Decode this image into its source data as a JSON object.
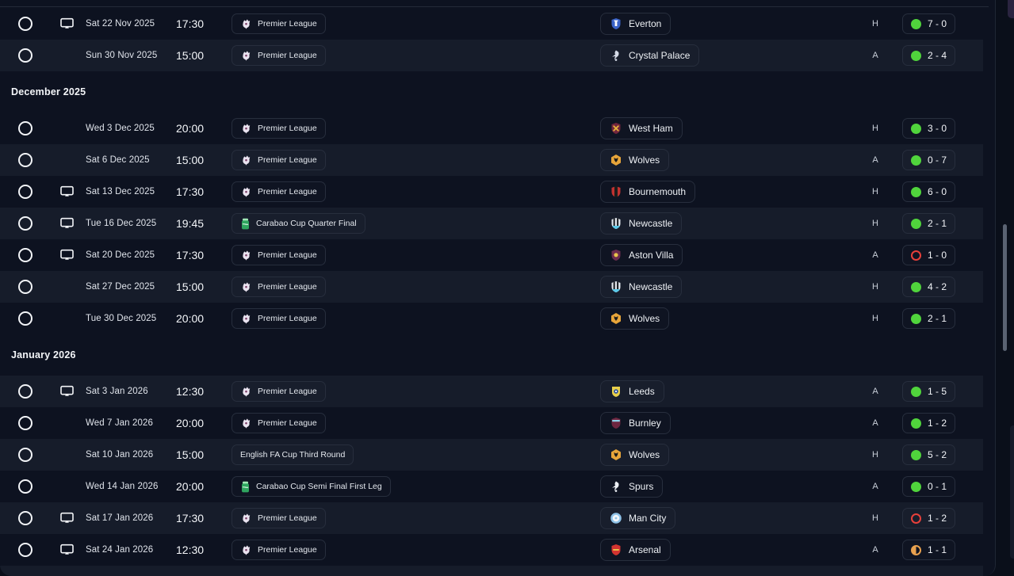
{
  "colors": {
    "win": "#50d43c",
    "loss": "#e8403a",
    "draw": "#e8a14f",
    "row_light": "#161c2a",
    "panel_bg": "#0d1220"
  },
  "fixtures": {
    "sections": [
      {
        "header": null,
        "rows": [
          {
            "tv": true,
            "date": "Sat 22 Nov 2025",
            "time": "17:30",
            "competition": {
              "label": "Premier League",
              "icon": "premier-league"
            },
            "opponent": {
              "name": "Everton",
              "badge": {
                "shape": "shield",
                "glyph": "tower",
                "primary": "#3a63c8",
                "secondary": "#ffffff"
              }
            },
            "venue": "H",
            "result": "win",
            "score": "7 - 0"
          },
          {
            "tv": false,
            "date": "Sun 30 Nov 2025",
            "time": "15:00",
            "competition": {
              "label": "Premier League",
              "icon": "premier-league"
            },
            "opponent": {
              "name": "Crystal Palace",
              "badge": {
                "shape": "bird",
                "primary": "#d4dae6",
                "secondary": "#4a69b8"
              }
            },
            "venue": "A",
            "result": "win",
            "score": "2 - 4"
          }
        ]
      },
      {
        "header": "December 2025",
        "rows": [
          {
            "tv": false,
            "date": "Wed 3 Dec 2025",
            "time": "20:00",
            "competition": {
              "label": "Premier League",
              "icon": "premier-league"
            },
            "opponent": {
              "name": "West Ham",
              "badge": {
                "shape": "shield",
                "glyph": "x",
                "primary": "#73263d",
                "secondary": "#e8b53a"
              }
            },
            "venue": "H",
            "result": "win",
            "score": "3 - 0"
          },
          {
            "tv": false,
            "date": "Sat 6 Dec 2025",
            "time": "15:00",
            "competition": {
              "label": "Premier League",
              "icon": "premier-league"
            },
            "opponent": {
              "name": "Wolves",
              "badge": {
                "shape": "hex",
                "primary": "#e8a53a",
                "secondary": "#1a1a1a"
              }
            },
            "venue": "A",
            "result": "win",
            "score": "0 - 7"
          },
          {
            "tv": true,
            "date": "Sat 13 Dec 2025",
            "time": "17:30",
            "competition": {
              "label": "Premier League",
              "icon": "premier-league"
            },
            "opponent": {
              "name": "Bournemouth",
              "badge": {
                "shape": "split",
                "primary": "#c03230",
                "secondary": "#1c1c1c"
              }
            },
            "venue": "H",
            "result": "win",
            "score": "6 - 0"
          },
          {
            "tv": true,
            "date": "Tue 16 Dec 2025",
            "time": "19:45",
            "competition": {
              "label": "Carabao Cup Quarter Final",
              "icon": "carabao"
            },
            "opponent": {
              "name": "Newcastle",
              "badge": {
                "shape": "stripes",
                "primary": "#e5e9ef",
                "secondary": "#23262b",
                "accent": "#5bc8e8"
              }
            },
            "venue": "H",
            "result": "win",
            "score": "2 - 1"
          },
          {
            "tv": true,
            "date": "Sat 20 Dec 2025",
            "time": "17:30",
            "competition": {
              "label": "Premier League",
              "icon": "premier-league"
            },
            "opponent": {
              "name": "Aston Villa",
              "badge": {
                "shape": "shield",
                "glyph": "dot",
                "primary": "#6b2c4e",
                "secondary": "#e8c54a"
              }
            },
            "venue": "A",
            "result": "loss",
            "score": "1 - 0"
          },
          {
            "tv": false,
            "date": "Sat 27 Dec 2025",
            "time": "15:00",
            "competition": {
              "label": "Premier League",
              "icon": "premier-league"
            },
            "opponent": {
              "name": "Newcastle",
              "badge": {
                "shape": "stripes",
                "primary": "#e5e9ef",
                "secondary": "#23262b",
                "accent": "#5bc8e8"
              }
            },
            "venue": "H",
            "result": "win",
            "score": "4 - 2"
          },
          {
            "tv": false,
            "date": "Tue 30 Dec 2025",
            "time": "20:00",
            "competition": {
              "label": "Premier League",
              "icon": "premier-league"
            },
            "opponent": {
              "name": "Wolves",
              "badge": {
                "shape": "hex",
                "primary": "#e8a53a",
                "secondary": "#1a1a1a"
              }
            },
            "venue": "H",
            "result": "win",
            "score": "2 - 1"
          }
        ]
      },
      {
        "header": "January 2026",
        "rows": [
          {
            "tv": true,
            "date": "Sat 3 Jan 2026",
            "time": "12:30",
            "competition": {
              "label": "Premier League",
              "icon": "premier-league"
            },
            "opponent": {
              "name": "Leeds",
              "badge": {
                "shape": "crest",
                "primary": "#e8cf4a",
                "secondary": "#2a4fa0"
              }
            },
            "venue": "A",
            "result": "win",
            "score": "1 - 5"
          },
          {
            "tv": false,
            "date": "Wed 7 Jan 2026",
            "time": "20:00",
            "competition": {
              "label": "Premier League",
              "icon": "premier-league"
            },
            "opponent": {
              "name": "Burnley",
              "badge": {
                "shape": "shield",
                "glyph": "band",
                "primary": "#6e2640",
                "secondary": "#8fd0e8"
              }
            },
            "venue": "A",
            "result": "win",
            "score": "1 - 2"
          },
          {
            "tv": false,
            "date": "Sat 10 Jan 2026",
            "time": "15:00",
            "competition": {
              "label": "English FA Cup Third Round",
              "icon": null
            },
            "opponent": {
              "name": "Wolves",
              "badge": {
                "shape": "hex",
                "primary": "#e8a53a",
                "secondary": "#1a1a1a"
              }
            },
            "venue": "H",
            "result": "win",
            "score": "5 - 2"
          },
          {
            "tv": false,
            "date": "Wed 14 Jan 2026",
            "time": "20:00",
            "competition": {
              "label": "Carabao Cup Semi Final First Leg",
              "icon": "carabao"
            },
            "opponent": {
              "name": "Spurs",
              "badge": {
                "shape": "bird",
                "primary": "#eceff4",
                "secondary": "#10131a"
              }
            },
            "venue": "A",
            "result": "win",
            "score": "0 - 1"
          },
          {
            "tv": true,
            "date": "Sat 17 Jan 2026",
            "time": "17:30",
            "competition": {
              "label": "Premier League",
              "icon": "premier-league"
            },
            "opponent": {
              "name": "Man City",
              "badge": {
                "shape": "circle",
                "primary": "#8fc2e8",
                "secondary": "#f2f6fa"
              }
            },
            "venue": "H",
            "result": "loss",
            "score": "1 - 2"
          },
          {
            "tv": true,
            "date": "Sat 24 Jan 2026",
            "time": "12:30",
            "competition": {
              "label": "Premier League",
              "icon": "premier-league"
            },
            "opponent": {
              "name": "Arsenal",
              "badge": {
                "shape": "shield",
                "glyph": "cannon",
                "primary": "#d23430",
                "secondary": "#e8c54a"
              }
            },
            "venue": "A",
            "result": "draw",
            "score": "1 - 1"
          }
        ]
      }
    ],
    "partial_row_at_bottom": true
  }
}
